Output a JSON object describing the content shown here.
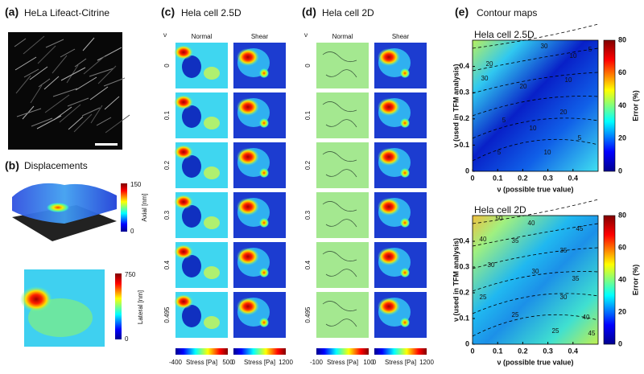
{
  "panels": {
    "a": {
      "label": "(a)",
      "title": "HeLa Lifeact-Citrine"
    },
    "b": {
      "label": "(b)",
      "title": "Displacements",
      "axial": {
        "axis_label": "Axial [nm]",
        "ticks": [
          "150",
          "0"
        ]
      },
      "lateral": {
        "axis_label": "Lateral [nm]",
        "ticks": [
          "750",
          "0"
        ]
      }
    },
    "c": {
      "label": "(c)",
      "title": "Hela cell 2.5D",
      "nu_symbol": "ν",
      "columns": [
        "Normal",
        "Shear"
      ],
      "rows": [
        "0",
        "0.1",
        "0.2",
        "0.3",
        "0.4",
        "0.495"
      ],
      "normal_colorbar": {
        "ticks": [
          "-400",
          "500"
        ],
        "label": "Stress [Pa]"
      },
      "shear_colorbar": {
        "ticks": [
          "0",
          "1200"
        ],
        "label": "Stress [Pa]"
      }
    },
    "d": {
      "label": "(d)",
      "title": "Hela cell 2D",
      "nu_symbol": "ν",
      "columns": [
        "Normal",
        "Shear"
      ],
      "rows": [
        "0",
        "0.1",
        "0.2",
        "0.3",
        "0.4",
        "0.495"
      ],
      "normal_colorbar": {
        "ticks": [
          "-100",
          "100"
        ],
        "label": "Stress [Pa]"
      },
      "shear_colorbar": {
        "ticks": [
          "0",
          "1200"
        ],
        "label": "Stress [Pa]"
      }
    },
    "e": {
      "label": "(e)",
      "title": "Contour maps",
      "maps": [
        {
          "title": "Hela cell 2.5D",
          "xlabel": "ν (possible true value)",
          "ylabel": "ν (used in TFM analysis)",
          "xticks": [
            "0",
            "0.1",
            "0.2",
            "0.3",
            "0.4"
          ],
          "yticks": [
            "0",
            "0.1",
            "0.2",
            "0.3",
            "0.4"
          ],
          "colorbar_label": "Error (%)",
          "colorbar_ticks": [
            "0",
            "20",
            "40",
            "60",
            "80"
          ],
          "contour_labels": [
            "30",
            "30",
            "20",
            "10",
            "5",
            "20",
            "10",
            "5",
            "10",
            "20",
            "5",
            "10",
            "5"
          ]
        },
        {
          "title": "Hela cell 2D",
          "xlabel": "ν (possible true value)",
          "ylabel": "ν (used in TFM analysis)",
          "xticks": [
            "0",
            "0.1",
            "0.2",
            "0.3",
            "0.4"
          ],
          "yticks": [
            "0",
            "0.1",
            "0.2",
            "0.3",
            "0.4"
          ],
          "colorbar_label": "Error (%)",
          "colorbar_ticks": [
            "0",
            "20",
            "40",
            "60",
            "80"
          ],
          "contour_labels": [
            "50",
            "40",
            "45",
            "40",
            "35",
            "35",
            "30",
            "30",
            "25",
            "25",
            "25",
            "30",
            "35",
            "40",
            "45"
          ]
        }
      ]
    }
  }
}
